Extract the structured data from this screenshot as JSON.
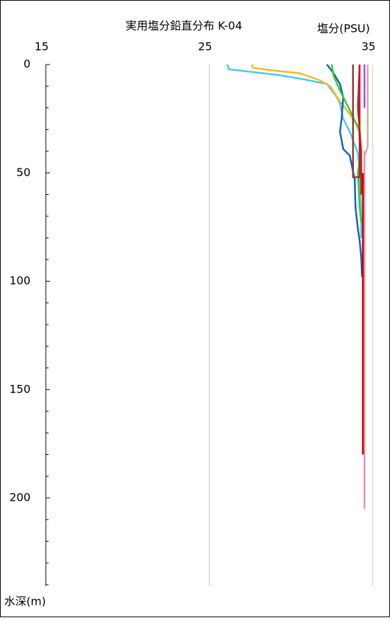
{
  "chart_data": {
    "type": "line",
    "title": "実用塩分鉛直分布 K-04",
    "x_label": "塩分(PSU)",
    "y_label": "水深(m)",
    "xlim": [
      15,
      35
    ],
    "xticks": [
      15,
      25,
      35
    ],
    "ylim": [
      0,
      240
    ],
    "y_inverted": true,
    "yticks": [
      0,
      50,
      100,
      150,
      200
    ],
    "yminorticks": [
      10,
      20,
      30,
      40,
      60,
      70,
      80,
      90,
      110,
      120,
      130,
      140,
      160,
      170,
      180,
      190,
      210,
      220,
      230,
      240
    ],
    "grid": true,
    "series": [
      {
        "color": "#48c8f0",
        "depths": [
          0,
          2.2,
          3,
          4.8,
          7,
          9,
          15,
          18,
          25,
          31,
          41,
          50,
          73,
          80
        ],
        "values": [
          26.1,
          26.2,
          27.1,
          29.2,
          30.9,
          32.2,
          32.8,
          33.0,
          33.2,
          33.6,
          34.1,
          34.2,
          34.3,
          34.3
        ]
      },
      {
        "color": "#f8b820",
        "depths": [
          0,
          1.6,
          3,
          4,
          7,
          10,
          17,
          23,
          28,
          34,
          44
        ],
        "values": [
          27.6,
          27.7,
          29.2,
          30.5,
          31.7,
          32.4,
          33.0,
          33.6,
          34.1,
          34.2,
          34.3
        ]
      },
      {
        "color": "#1060c0",
        "depths": [
          0,
          4,
          9,
          15,
          25,
          31,
          39,
          42,
          53,
          66,
          76,
          81,
          89,
          98
        ],
        "values": [
          32.2,
          32.6,
          33.0,
          33.2,
          33.1,
          33.0,
          33.2,
          33.6,
          33.9,
          33.95,
          34.1,
          34.2,
          34.3,
          34.35
        ]
      },
      {
        "color": "#30d030",
        "depths": [
          0,
          5,
          12,
          18,
          25,
          31,
          44,
          50,
          66,
          73
        ],
        "values": [
          32.5,
          32.6,
          33.0,
          33.4,
          33.85,
          34.2,
          34.2,
          34.1,
          34.2,
          34.3
        ]
      },
      {
        "color": "#8b3a3a",
        "depths": [
          0,
          52,
          52,
          0
        ],
        "values": [
          33.8,
          33.8,
          34.2,
          34.2
        ]
      },
      {
        "color": "#e01010",
        "depths": [
          0,
          20,
          40,
          60
        ],
        "values": [
          34.2,
          34.1,
          34.3,
          34.3
        ]
      },
      {
        "color": "#c040e0",
        "depths": [
          0,
          20
        ],
        "values": [
          34.5,
          34.5
        ]
      },
      {
        "color": "#d0b090",
        "depths": [
          0,
          38,
          42
        ],
        "values": [
          34.7,
          34.7,
          34.5
        ]
      },
      {
        "color": "#e890a8",
        "depths": [
          40,
          205
        ],
        "values": [
          34.5,
          34.5
        ]
      },
      {
        "color": "#c00000",
        "depths": [
          50,
          180
        ],
        "values": [
          34.4,
          34.4
        ]
      }
    ]
  }
}
